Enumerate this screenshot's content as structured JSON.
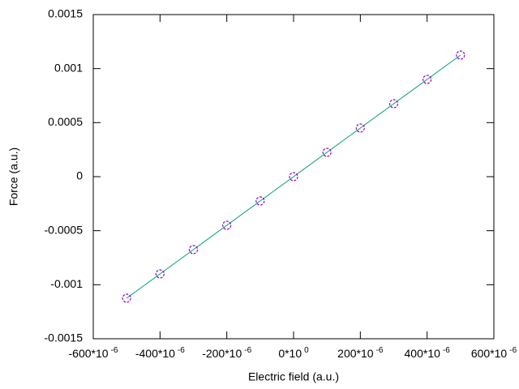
{
  "chart_data": {
    "type": "scatter",
    "xlabel": "Electric field (a.u.)",
    "ylabel": "Force (a.u.)",
    "x": [
      -0.0005,
      -0.0004,
      -0.0003,
      -0.0002,
      -0.0001,
      0,
      0.0001,
      0.0002,
      0.0003,
      0.0004,
      0.0005
    ],
    "series": [
      {
        "line_color": "#009e73",
        "color": "#9400d3",
        "values": [
          -0.001125,
          -0.0009,
          -0.000675,
          -0.00045,
          -0.000225,
          0,
          0.000225,
          0.00045,
          0.000675,
          0.0009,
          0.001125
        ]
      }
    ],
    "xlim": [
      -0.0006,
      0.0006
    ],
    "xticks": [
      {
        "value": -0.0006,
        "label": "-600*10",
        "exponent": "-6"
      },
      {
        "value": -0.0004,
        "label": "-400*10",
        "exponent": "-6"
      },
      {
        "value": -0.0002,
        "label": "-200*10",
        "exponent": "-6"
      },
      {
        "value": 0,
        "label": "0*10",
        "exponent": "0"
      },
      {
        "value": 0.0002,
        "label": "200*10",
        "exponent": "-6"
      },
      {
        "value": 0.0004,
        "label": "400*10",
        "exponent": "-6"
      },
      {
        "value": 0.0006,
        "label": "600*10",
        "exponent": "-6"
      }
    ],
    "ylim": [
      -0.0015,
      0.0015
    ],
    "yticks": [
      -0.0015,
      -0.001,
      -0.0005,
      0,
      0.0005,
      0.001,
      0.0015
    ]
  }
}
